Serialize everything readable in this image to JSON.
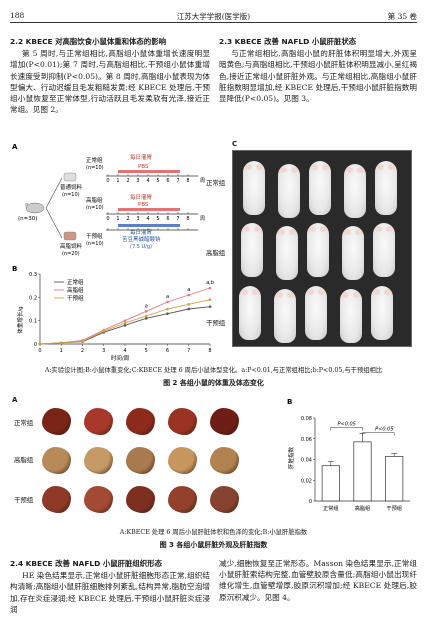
{
  "header": {
    "page_no": "188",
    "journal": "江苏大学学报(医学版)",
    "volume": "第 35 卷"
  },
  "left_col": {
    "heading": "2.2  KBECE 对高脂饮食小鼠体重和体态的影响",
    "body": "第 5 周时,与正常组相比,高脂组小鼠体重增长速度明显增加(P<0.01);第 7 周时,与高脂组相比,干预组小鼠体重增长速度受到抑制(P<0.05)。第 8 周时,高脂组小鼠表现为体型偏大、行动迟缓且毛发粗糙发黄;经 KBECE 处理后,干预组小鼠恢复至正常体型,行动活跃且毛发柔软有光泽,接近正常组。见图 2。"
  },
  "right_col": {
    "heading": "2.3  KBECE 改善 NAFLD 小鼠肝脏状态",
    "body": "与正常组相比,高脂组小鼠的肝脏体积明显增大,外观呈暗黄色;与高脂组相比,干预组小鼠肝脏体积明显减小,呈红褐色,接近正常组小鼠肝脏外观。与正常组相比,高脂组小鼠肝脏指数明显增加,经 KBECE 处理后,干预组小鼠肝脏指数明显降低(P<0.05)。见图 3。"
  },
  "fig2": {
    "panel_a": "A",
    "panel_b": "B",
    "panel_c": "C",
    "groups": [
      {
        "name": "正常组",
        "n": "(n=10)"
      },
      {
        "name": "高脂组",
        "n": "(n=10)"
      },
      {
        "name": "干预组",
        "n": "(n=10)"
      }
    ],
    "n_total": "(n=30)",
    "diet_normal": "普通饲料",
    "diet_normal_n": "(n=10)",
    "diet_hf": "高脂饲料",
    "diet_hf_n": "(n=20)",
    "gavage": "每日灌胃",
    "pbs": "PBS",
    "kbece": "苦豆黑碱醋酸钠",
    "dose": "(7.5 U/g)",
    "week_unit": "周",
    "week_ticks": [
      "0",
      "1",
      "2",
      "3",
      "4",
      "5",
      "6",
      "7",
      "8"
    ],
    "photo_rows": [
      "正常组",
      "高脂组",
      "干预组"
    ],
    "caption": "A:实验设计图;B:小鼠体重变化;C:KBECE 处理 6 周后小鼠体型变化。a:P<0.01,与正常组相比;b:P<0.05,与干预组相比",
    "title": "图 2   各组小鼠的体重及体态变化"
  },
  "chart_data": {
    "type": "line",
    "title": "",
    "xlabel": "时间/周",
    "ylabel": "体重增长/g",
    "x": [
      0,
      1,
      2,
      3,
      4,
      5,
      6,
      7,
      8
    ],
    "ylim": [
      0,
      0.3
    ],
    "yticks": [
      "0",
      "0.1",
      "0.2",
      "0.3"
    ],
    "series": [
      {
        "name": "正常组",
        "values": [
          0,
          0.005,
          0.01,
          0.05,
          0.08,
          0.11,
          0.13,
          0.15,
          0.16
        ],
        "color": "#555555"
      },
      {
        "name": "高脂组",
        "values": [
          0,
          0.005,
          0.015,
          0.06,
          0.1,
          0.14,
          0.18,
          0.21,
          0.24
        ],
        "color": "#e07a8a"
      },
      {
        "name": "干预组",
        "values": [
          0,
          0.005,
          0.012,
          0.055,
          0.09,
          0.12,
          0.15,
          0.17,
          0.19
        ],
        "color": "#d4a040"
      }
    ],
    "annotations": [
      "a",
      "a",
      "a",
      "a,b"
    ],
    "legend": "top-left"
  },
  "fig3": {
    "panel_a": "A",
    "panel_b": "B",
    "rows": [
      "正常组",
      "高脂组",
      "干预组"
    ],
    "bar_chart": {
      "ylabel": "肝脏指数",
      "categories": [
        "正常组",
        "高脂组",
        "干预组"
      ],
      "values": [
        0.034,
        0.057,
        0.043
      ],
      "errors": [
        0.004,
        0.008,
        0.003
      ],
      "ylim": [
        0,
        0.08
      ],
      "yticks": [
        "0",
        "0.02",
        "0.04",
        "0.06",
        "0.08"
      ],
      "sig": [
        "P<0.05",
        "P<0.05"
      ]
    },
    "caption": "A:KBECE 处理 6 周后小鼠肝脏体积和色泽的变化;B:小鼠肝脏指数",
    "title": "图 3   各组小鼠肝脏外观及肝脏指数"
  },
  "bottom_left": {
    "heading": "2.4  KBECE 改善 NAFLD 小鼠肝脏组织形态",
    "body": "HE 染色结果显示,正常组小鼠肝脏细胞形态正常,组织结构清晰;高脂组小鼠肝脏细胞排列紊乱,结构异常,脂肪空泡增加,存在炎症浸润;经 KBECE 处理后,干预组小鼠肝脏炎症浸润"
  },
  "bottom_right": {
    "body": "减少,细胞恢复至正常形态。Masson 染色结果显示,正常组小鼠肝脏索结构完整,血管壁胶原含量低;高脂组小鼠出现纤维化增生,血管壁增厚,胶原沉积增加;经 KBECE 处理后,胶原沉积减少。见图 4。"
  }
}
